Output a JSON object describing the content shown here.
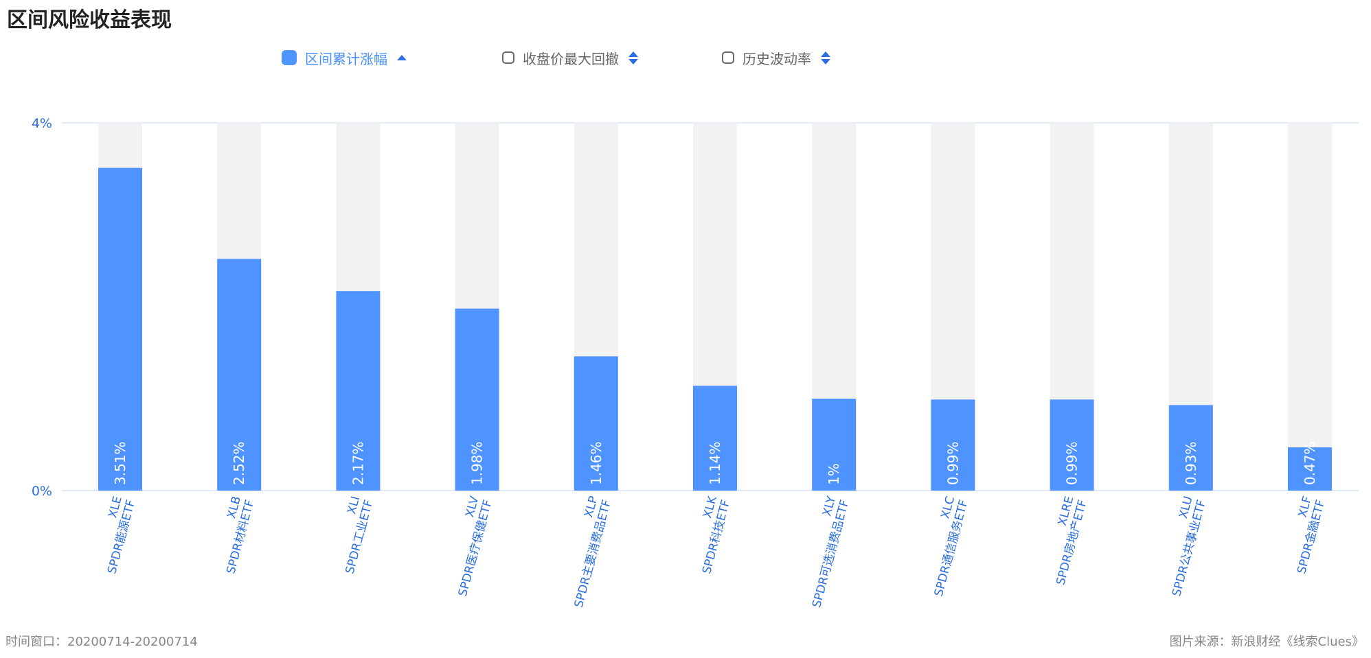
{
  "title": "区间风险收益表现",
  "tabs": [
    {
      "label": "区间累计涨幅",
      "active": true
    },
    {
      "label": "收盘价最大回撤",
      "active": false
    },
    {
      "label": "历史波动率",
      "active": false
    }
  ],
  "footer": {
    "time_window": "时间窗口：20200714-20200714",
    "source": "图片来源：新浪财经《线索Clues》"
  },
  "colors": {
    "bar": "#4e93ff",
    "bar_track": "#f2f2f2",
    "axis_text": "#2b6fe0",
    "gridline": "#d6e6f7"
  },
  "chart_data": {
    "type": "bar",
    "y_ticks": [
      "4%",
      "0%"
    ],
    "ylim": [
      0,
      4
    ],
    "categories": [
      {
        "code": "XLE",
        "name": "SPDR能源ETF"
      },
      {
        "code": "XLB",
        "name": "SPDR材料ETF"
      },
      {
        "code": "XLI",
        "name": "SPDR工业ETF"
      },
      {
        "code": "XLV",
        "name": "SPDR医疗保健ETF"
      },
      {
        "code": "XLP",
        "name": "SPDR主要消费品ETF"
      },
      {
        "code": "XLK",
        "name": "SPDR科技ETF"
      },
      {
        "code": "XLY",
        "name": "SPDR可选消费品ETF"
      },
      {
        "code": "XLC",
        "name": "SPDR通信服务ETF"
      },
      {
        "code": "XLRE",
        "name": "SPDR房地产ETF"
      },
      {
        "code": "XLU",
        "name": "SPDR公共事业ETF"
      },
      {
        "code": "XLF",
        "name": "SPDR金融ETF"
      }
    ],
    "values": [
      3.51,
      2.52,
      2.17,
      1.98,
      1.46,
      1.14,
      1,
      0.99,
      0.99,
      0.93,
      0.47
    ],
    "value_labels": [
      "3.51%",
      "2.52%",
      "2.17%",
      "1.98%",
      "1.46%",
      "1.14%",
      "1%",
      "0.99%",
      "0.99%",
      "0.93%",
      "0.47%"
    ],
    "grid": true
  }
}
